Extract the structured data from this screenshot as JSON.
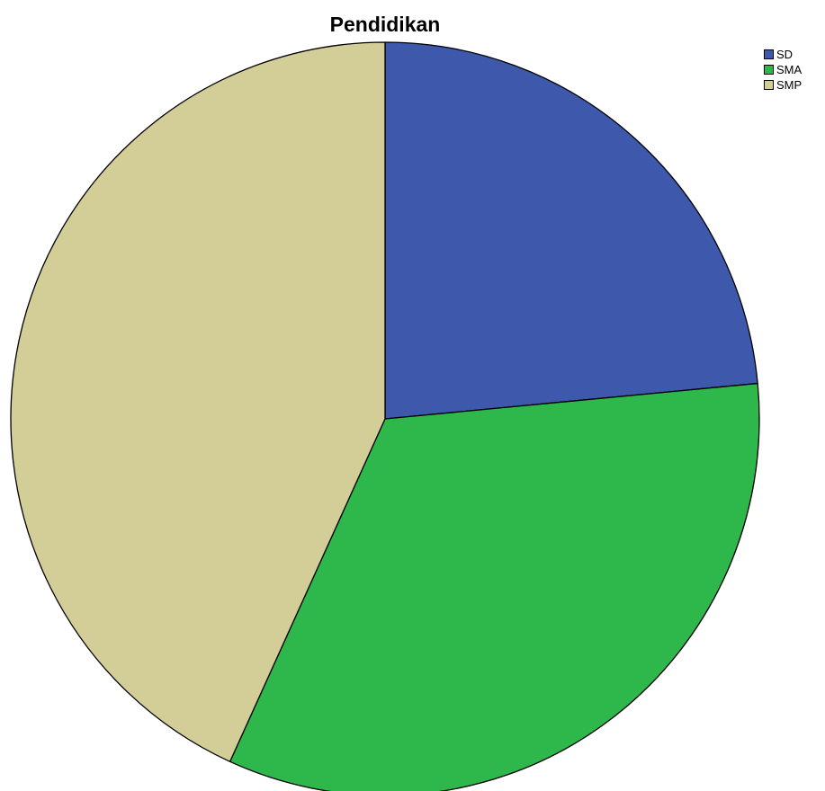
{
  "chart_data": {
    "type": "pie",
    "title": "Pendidikan",
    "slices": [
      {
        "label": "SD",
        "value": 23.5,
        "color": "#3e58ac"
      },
      {
        "label": "SMA",
        "value": 33.3,
        "color": "#2eb84b"
      },
      {
        "label": "SMP",
        "value": 43.2,
        "color": "#d3ce97"
      }
    ],
    "legend": {
      "position": "top-right",
      "entries": [
        "SD",
        "SMA",
        "SMP"
      ]
    },
    "start": "12 o'clock",
    "direction": "clockwise"
  }
}
